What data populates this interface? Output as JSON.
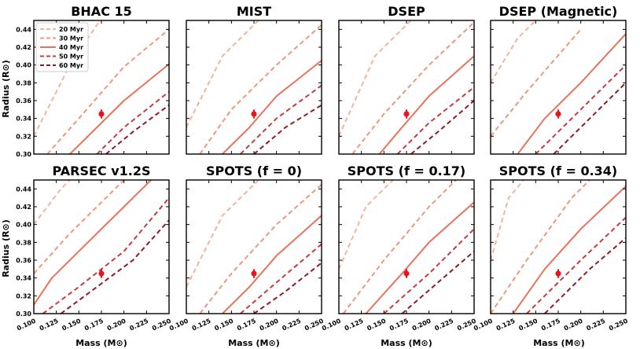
{
  "figure": {
    "xlabel": "Mass (M⊙)",
    "ylabel": "Radius (R⊙)"
  },
  "colors": {
    "20 Myr": "#f5b39a",
    "30 Myr": "#ef9878",
    "40 Myr": "#e8735a",
    "50 Myr": "#c73a3f",
    "60 Myr": "#8c1c2a",
    "point": "#e8141e"
  },
  "chart_data": [
    {
      "type": "line",
      "title": "BHAC 15",
      "xlim": [
        0.1,
        0.25
      ],
      "ylim": [
        0.3,
        0.45
      ],
      "xticks": [
        "0.100",
        "0.125",
        "0.150",
        "0.175",
        "0.200",
        "0.225",
        "0.250"
      ],
      "yticks": [
        "0.30",
        "0.32",
        "0.34",
        "0.36",
        "0.38",
        "0.40",
        "0.42",
        "0.44"
      ],
      "legend": [
        "20 Myr",
        "30 Myr",
        "40 Myr",
        "50 Myr",
        "60 Myr"
      ],
      "series": [
        {
          "name": "20 Myr",
          "style": "dashed",
          "x": [
            0.1,
            0.14,
            0.18
          ],
          "y": [
            0.32,
            0.4,
            0.46
          ]
        },
        {
          "name": "30 Myr",
          "style": "dashed",
          "x": [
            0.115,
            0.15,
            0.2,
            0.25
          ],
          "y": [
            0.3,
            0.34,
            0.398,
            0.44
          ]
        },
        {
          "name": "40 Myr",
          "style": "solid",
          "x": [
            0.14,
            0.17,
            0.2,
            0.25
          ],
          "y": [
            0.3,
            0.33,
            0.36,
            0.401
          ]
        },
        {
          "name": "50 Myr",
          "style": "dashed",
          "x": [
            0.17,
            0.2,
            0.25
          ],
          "y": [
            0.3,
            0.33,
            0.37
          ]
        },
        {
          "name": "60 Myr",
          "style": "dashed",
          "x": [
            0.18,
            0.21,
            0.25
          ],
          "y": [
            0.3,
            0.325,
            0.355
          ]
        }
      ],
      "point": {
        "x": 0.175,
        "y": 0.345,
        "yerr": 0.005
      }
    },
    {
      "type": "line",
      "title": "MIST",
      "xlim": [
        0.1,
        0.25
      ],
      "ylim": [
        0.3,
        0.45
      ],
      "xticks": [
        "0.100",
        "0.125",
        "0.150",
        "0.175",
        "0.200",
        "0.225",
        "0.250"
      ],
      "yticks": [
        "0.30",
        "0.32",
        "0.34",
        "0.36",
        "0.38",
        "0.40",
        "0.42",
        "0.44"
      ],
      "series": [
        {
          "name": "20 Myr",
          "style": "dashed",
          "x": [
            0.1,
            0.14,
            0.19
          ],
          "y": [
            0.33,
            0.41,
            0.46
          ]
        },
        {
          "name": "30 Myr",
          "style": "dashed",
          "x": [
            0.115,
            0.15,
            0.2,
            0.25
          ],
          "y": [
            0.3,
            0.35,
            0.4,
            0.445
          ]
        },
        {
          "name": "40 Myr",
          "style": "solid",
          "x": [
            0.14,
            0.17,
            0.2,
            0.25
          ],
          "y": [
            0.3,
            0.33,
            0.365,
            0.405
          ]
        },
        {
          "name": "50 Myr",
          "style": "dashed",
          "x": [
            0.16,
            0.2,
            0.25
          ],
          "y": [
            0.3,
            0.34,
            0.377
          ]
        },
        {
          "name": "60 Myr",
          "style": "dashed",
          "x": [
            0.175,
            0.21,
            0.25
          ],
          "y": [
            0.3,
            0.33,
            0.355
          ]
        }
      ],
      "point": {
        "x": 0.175,
        "y": 0.345,
        "yerr": 0.005
      }
    },
    {
      "type": "line",
      "title": "DSEP",
      "xlim": [
        0.1,
        0.25
      ],
      "ylim": [
        0.3,
        0.45
      ],
      "xticks": [
        "0.100",
        "0.125",
        "0.150",
        "0.175",
        "0.200",
        "0.225",
        "0.250"
      ],
      "yticks": [
        "0.30",
        "0.32",
        "0.34",
        "0.36",
        "0.38",
        "0.40",
        "0.42",
        "0.44"
      ],
      "series": [
        {
          "name": "20 Myr",
          "style": "dashed",
          "x": [
            0.1,
            0.14,
            0.19
          ],
          "y": [
            0.32,
            0.41,
            0.46
          ]
        },
        {
          "name": "30 Myr",
          "style": "dashed",
          "x": [
            0.115,
            0.15,
            0.2,
            0.25
          ],
          "y": [
            0.3,
            0.345,
            0.4,
            0.448
          ]
        },
        {
          "name": "40 Myr",
          "style": "solid",
          "x": [
            0.145,
            0.17,
            0.2,
            0.25
          ],
          "y": [
            0.3,
            0.33,
            0.365,
            0.41
          ]
        },
        {
          "name": "50 Myr",
          "style": "dashed",
          "x": [
            0.165,
            0.2,
            0.25
          ],
          "y": [
            0.3,
            0.335,
            0.375
          ]
        },
        {
          "name": "60 Myr",
          "style": "dashed",
          "x": [
            0.18,
            0.21,
            0.25
          ],
          "y": [
            0.3,
            0.325,
            0.36
          ]
        }
      ],
      "point": {
        "x": 0.175,
        "y": 0.345,
        "yerr": 0.005
      }
    },
    {
      "type": "line",
      "title": "DSEP (Magnetic)",
      "xlim": [
        0.1,
        0.25
      ],
      "ylim": [
        0.3,
        0.45
      ],
      "xticks": [
        "0.100",
        "0.125",
        "0.150",
        "0.175",
        "0.200",
        "0.225",
        "0.250"
      ],
      "yticks": [
        "0.30",
        "0.32",
        "0.34",
        "0.36",
        "0.38",
        "0.40",
        "0.42",
        "0.44"
      ],
      "series": [
        {
          "name": "20 Myr",
          "style": "dashed",
          "x": [
            0.1,
            0.13,
            0.16
          ],
          "y": [
            0.38,
            0.43,
            0.46
          ]
        },
        {
          "name": "30 Myr",
          "style": "dashed",
          "x": [
            0.1,
            0.14,
            0.2
          ],
          "y": [
            0.32,
            0.37,
            0.44
          ]
        },
        {
          "name": "40 Myr",
          "style": "solid",
          "x": [
            0.13,
            0.16,
            0.2,
            0.25
          ],
          "y": [
            0.3,
            0.34,
            0.38,
            0.435
          ]
        },
        {
          "name": "50 Myr",
          "style": "dashed",
          "x": [
            0.15,
            0.2,
            0.25
          ],
          "y": [
            0.3,
            0.35,
            0.4
          ]
        },
        {
          "name": "60 Myr",
          "style": "dashed",
          "x": [
            0.17,
            0.21,
            0.25
          ],
          "y": [
            0.3,
            0.34,
            0.38
          ]
        }
      ],
      "point": {
        "x": 0.175,
        "y": 0.345,
        "yerr": 0.005
      }
    },
    {
      "type": "line",
      "title": "PARSEC v1.2S",
      "xlim": [
        0.1,
        0.25
      ],
      "ylim": [
        0.3,
        0.45
      ],
      "xticks": [
        "0.100",
        "0.125",
        "0.150",
        "0.175",
        "0.200",
        "0.225",
        "0.250"
      ],
      "yticks": [
        "0.30",
        "0.32",
        "0.34",
        "0.36",
        "0.38",
        "0.40",
        "0.42",
        "0.44"
      ],
      "series": [
        {
          "name": "20 Myr",
          "style": "dashed",
          "x": [
            0.1,
            0.13,
            0.15
          ],
          "y": [
            0.4,
            0.44,
            0.46
          ]
        },
        {
          "name": "30 Myr",
          "style": "dashed",
          "x": [
            0.1,
            0.14,
            0.2
          ],
          "y": [
            0.345,
            0.39,
            0.45
          ]
        },
        {
          "name": "40 Myr",
          "style": "solid",
          "x": [
            0.1,
            0.12,
            0.16,
            0.2,
            0.23
          ],
          "y": [
            0.31,
            0.34,
            0.38,
            0.42,
            0.45
          ]
        },
        {
          "name": "50 Myr",
          "style": "dashed",
          "x": [
            0.11,
            0.15,
            0.2,
            0.25
          ],
          "y": [
            0.3,
            0.33,
            0.37,
            0.43
          ]
        },
        {
          "name": "60 Myr",
          "style": "dashed",
          "x": [
            0.13,
            0.17,
            0.21,
            0.25
          ],
          "y": [
            0.3,
            0.33,
            0.36,
            0.405
          ]
        }
      ],
      "point": {
        "x": 0.175,
        "y": 0.345,
        "yerr": 0.005
      }
    },
    {
      "type": "line",
      "title": "SPOTS (f = 0)",
      "xlim": [
        0.1,
        0.25
      ],
      "ylim": [
        0.3,
        0.45
      ],
      "xticks": [
        "0.100",
        "0.125",
        "0.150",
        "0.175",
        "0.200",
        "0.225",
        "0.250"
      ],
      "yticks": [
        "0.30",
        "0.32",
        "0.34",
        "0.36",
        "0.38",
        "0.40",
        "0.42",
        "0.44"
      ],
      "series": [
        {
          "name": "20 Myr",
          "style": "dashed",
          "x": [
            0.1,
            0.14,
            0.19
          ],
          "y": [
            0.33,
            0.41,
            0.46
          ]
        },
        {
          "name": "30 Myr",
          "style": "dashed",
          "x": [
            0.115,
            0.15,
            0.2,
            0.25
          ],
          "y": [
            0.3,
            0.345,
            0.4,
            0.445
          ]
        },
        {
          "name": "40 Myr",
          "style": "solid",
          "x": [
            0.14,
            0.17,
            0.2,
            0.25
          ],
          "y": [
            0.3,
            0.33,
            0.365,
            0.41
          ]
        },
        {
          "name": "50 Myr",
          "style": "dashed",
          "x": [
            0.16,
            0.2,
            0.25
          ],
          "y": [
            0.3,
            0.335,
            0.378
          ]
        },
        {
          "name": "60 Myr",
          "style": "dashed",
          "x": [
            0.175,
            0.21,
            0.25
          ],
          "y": [
            0.3,
            0.325,
            0.357
          ]
        }
      ],
      "point": {
        "x": 0.175,
        "y": 0.345,
        "yerr": 0.005
      }
    },
    {
      "type": "line",
      "title": "SPOTS (f = 0.17)",
      "xlim": [
        0.1,
        0.25
      ],
      "ylim": [
        0.3,
        0.45
      ],
      "xticks": [
        "0.100",
        "0.125",
        "0.150",
        "0.175",
        "0.200",
        "0.225",
        "0.250"
      ],
      "yticks": [
        "0.30",
        "0.32",
        "0.34",
        "0.36",
        "0.38",
        "0.40",
        "0.42",
        "0.44"
      ],
      "series": [
        {
          "name": "20 Myr",
          "style": "dashed",
          "x": [
            0.1,
            0.13,
            0.17
          ],
          "y": [
            0.35,
            0.42,
            0.46
          ]
        },
        {
          "name": "30 Myr",
          "style": "dashed",
          "x": [
            0.105,
            0.15,
            0.2,
            0.23
          ],
          "y": [
            0.3,
            0.36,
            0.42,
            0.45
          ]
        },
        {
          "name": "40 Myr",
          "style": "solid",
          "x": [
            0.13,
            0.17,
            0.2,
            0.25
          ],
          "y": [
            0.3,
            0.345,
            0.38,
            0.425
          ]
        },
        {
          "name": "50 Myr",
          "style": "dashed",
          "x": [
            0.15,
            0.2,
            0.25
          ],
          "y": [
            0.3,
            0.345,
            0.395
          ]
        },
        {
          "name": "60 Myr",
          "style": "dashed",
          "x": [
            0.17,
            0.21,
            0.25
          ],
          "y": [
            0.3,
            0.335,
            0.37
          ]
        }
      ],
      "point": {
        "x": 0.175,
        "y": 0.345,
        "yerr": 0.005
      }
    },
    {
      "type": "line",
      "title": "SPOTS (f = 0.34)",
      "xlim": [
        0.1,
        0.25
      ],
      "ylim": [
        0.3,
        0.45
      ],
      "xticks": [
        "0.100",
        "0.125",
        "0.150",
        "0.175",
        "0.200",
        "0.225",
        "0.250"
      ],
      "yticks": [
        "0.30",
        "0.32",
        "0.34",
        "0.36",
        "0.38",
        "0.40",
        "0.42",
        "0.44"
      ],
      "series": [
        {
          "name": "20 Myr",
          "style": "dashed",
          "x": [
            0.1,
            0.12,
            0.145
          ],
          "y": [
            0.36,
            0.43,
            0.46
          ]
        },
        {
          "name": "30 Myr",
          "style": "dashed",
          "x": [
            0.1,
            0.14,
            0.19,
            0.21
          ],
          "y": [
            0.3,
            0.36,
            0.43,
            0.45
          ]
        },
        {
          "name": "40 Myr",
          "style": "solid",
          "x": [
            0.125,
            0.16,
            0.2,
            0.25
          ],
          "y": [
            0.3,
            0.35,
            0.395,
            0.443
          ]
        },
        {
          "name": "50 Myr",
          "style": "dashed",
          "x": [
            0.14,
            0.2,
            0.25
          ],
          "y": [
            0.3,
            0.36,
            0.408
          ]
        },
        {
          "name": "60 Myr",
          "style": "dashed",
          "x": [
            0.16,
            0.21,
            0.25
          ],
          "y": [
            0.3,
            0.35,
            0.385
          ]
        }
      ],
      "point": {
        "x": 0.175,
        "y": 0.345,
        "yerr": 0.005
      }
    }
  ]
}
